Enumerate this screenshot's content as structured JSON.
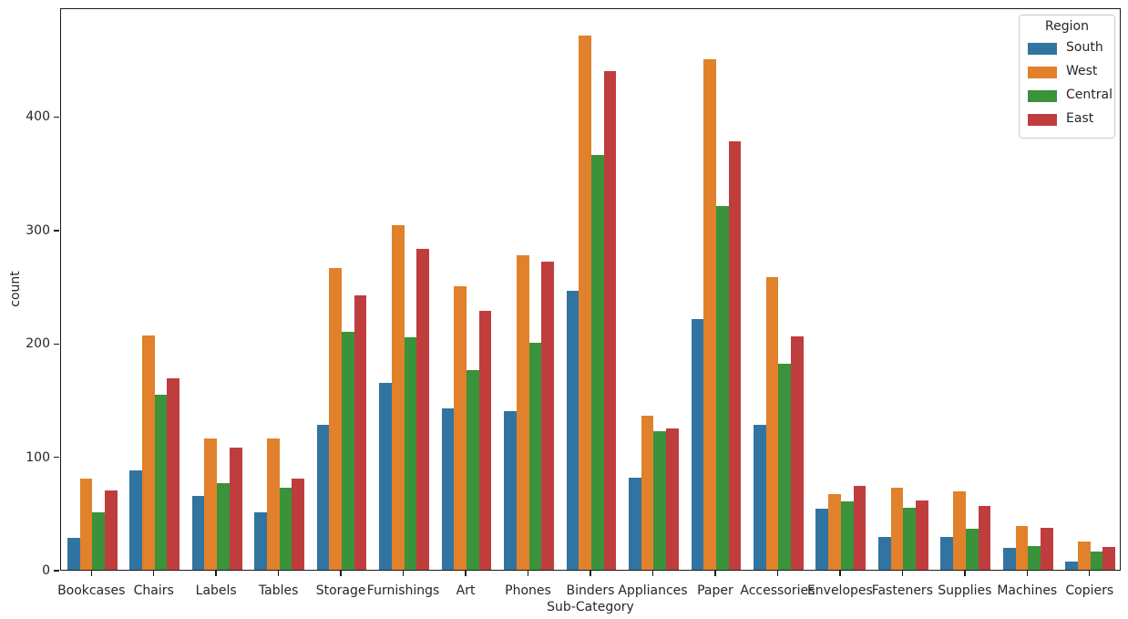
{
  "chart_data": {
    "type": "bar",
    "title": "",
    "xlabel": "Sub-Category",
    "ylabel": "count",
    "categories": [
      "Bookcases",
      "Chairs",
      "Labels",
      "Tables",
      "Storage",
      "Furnishings",
      "Art",
      "Phones",
      "Binders",
      "Appliances",
      "Paper",
      "Accessories",
      "Envelopes",
      "Fasteners",
      "Supplies",
      "Machines",
      "Copiers"
    ],
    "series": [
      {
        "name": "South",
        "color": "#3274a1",
        "values": [
          28,
          88,
          65,
          51,
          128,
          165,
          142,
          140,
          246,
          81,
          221,
          128,
          54,
          29,
          29,
          19,
          7
        ]
      },
      {
        "name": "West",
        "color": "#e1812c",
        "values": [
          80,
          207,
          116,
          116,
          266,
          304,
          250,
          277,
          471,
          136,
          450,
          258,
          67,
          72,
          69,
          39,
          25
        ]
      },
      {
        "name": "Central",
        "color": "#3a923a",
        "values": [
          51,
          154,
          76,
          72,
          210,
          205,
          176,
          200,
          366,
          122,
          321,
          182,
          60,
          55,
          36,
          21,
          16
        ]
      },
      {
        "name": "East",
        "color": "#c03d3e",
        "values": [
          70,
          169,
          108,
          80,
          242,
          283,
          228,
          272,
          440,
          125,
          378,
          206,
          74,
          61,
          56,
          37,
          20
        ]
      }
    ],
    "y_ticks": [
      0,
      100,
      200,
      300,
      400
    ],
    "ylim": [
      0,
      496
    ],
    "grid": false,
    "legend": {
      "title": "Region",
      "position": "upper-right",
      "entries": [
        "South",
        "West",
        "Central",
        "East"
      ]
    }
  }
}
